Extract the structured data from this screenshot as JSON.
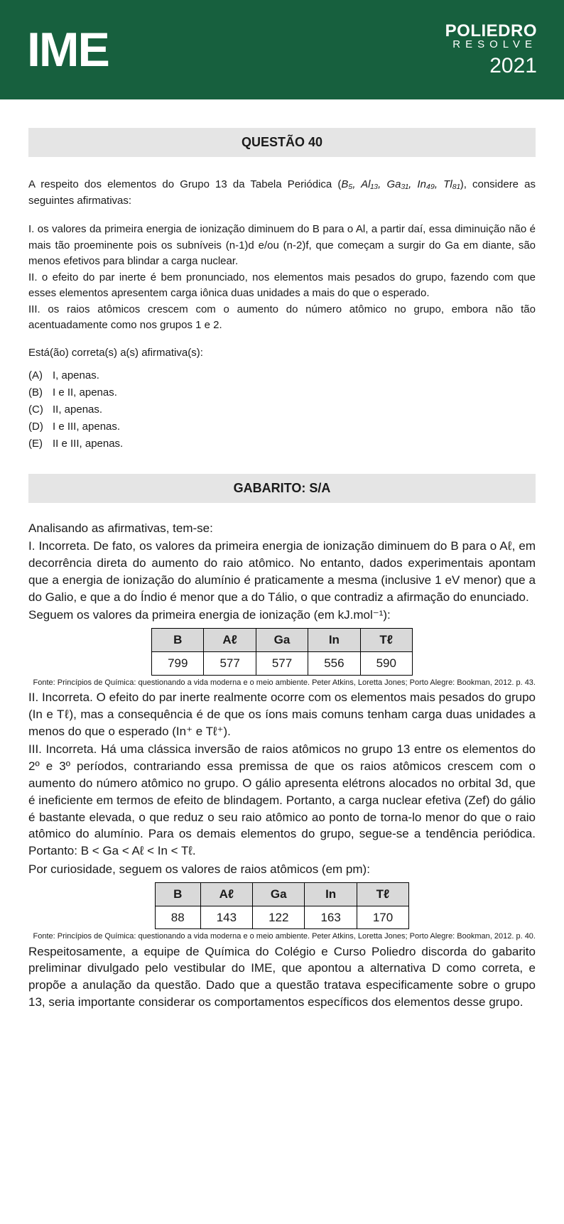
{
  "header": {
    "left": "IME",
    "brand": "POLIEDRO",
    "sub": "RESOLVE",
    "year": "2021",
    "bg_color": "#17603e",
    "text_color": "#ffffff"
  },
  "question": {
    "title": "QUESTÃO 40",
    "intro_a": "A respeito dos elementos do Grupo 13 da Tabela Periódica (",
    "intro_elements": "B₅, Al₁₃, Ga₃₁, In₄₉, Tl₈₁",
    "intro_b": "), considere as seguintes afirmativas:",
    "stmt1": "I. os valores da primeira energia de ionização diminuem do B para o Al, a partir daí, essa diminuição não é mais tão proeminente pois os subníveis (n-1)d e/ou (n-2)f, que começam a surgir do Ga em diante, são menos efetivos para blindar a carga nuclear.",
    "stmt2": "II. o efeito do par inerte é bem pronunciado, nos elementos mais pesados do grupo, fazendo com que esses elementos apresentem carga iônica duas unidades a mais do que o esperado.",
    "stmt3": "III. os raios atômicos crescem com o aumento do número atômico no grupo, embora não tão acentuadamente como nos grupos 1 e 2.",
    "prompt": "Está(ão) correta(s) a(s) afirmativa(s):",
    "options": [
      {
        "letter": "(A)",
        "text": "I, apenas."
      },
      {
        "letter": "(B)",
        "text": "I e II, apenas."
      },
      {
        "letter": "(C)",
        "text": "II, apenas."
      },
      {
        "letter": "(D)",
        "text": "I e III, apenas."
      },
      {
        "letter": "(E)",
        "text": "II e III, apenas."
      }
    ]
  },
  "gabarito": {
    "title": "GABARITO: S/A"
  },
  "analysis": {
    "lead": "Analisando as afirmativas, tem-se:",
    "p1": "I. Incorreta. De fato, os valores da primeira energia de ionização diminuem do B para o Aℓ, em decorrência direta do aumento do raio atômico. No entanto, dados experimentais apontam que a energia de ionização do alumínio é praticamente a mesma (inclusive 1 eV menor) que a do Galio, e que a do Índio é menor que a do Tálio, o que contradiz a afirmação do enunciado.",
    "p1b": "Seguem os valores da primeira energia de ionização (em kJ.mol⁻¹):",
    "source1": "Fonte: Princípios de Química: questionando a vida moderna e o meio ambiente. Peter Atkins, Loretta Jones; Porto Alegre: Bookman, 2012. p. 43.",
    "p2": "II. Incorreta. O efeito do par inerte realmente ocorre com os elementos mais pesados do grupo (In e Tℓ), mas a consequência é de que os íons mais comuns tenham carga duas unidades a menos do que o esperado (In⁺ e Tℓ⁺).",
    "p3": "III. Incorreta. Há uma clássica inversão de raios atômicos no grupo 13 entre os elementos do 2º e 3º períodos, contrariando essa premissa de que os raios atômicos crescem com o aumento do número atômico no grupo. O gálio apresenta elétrons alocados no orbital 3d, que é ineficiente em termos de efeito de blindagem. Portanto, a carga nuclear efetiva (Zef) do gálio é bastante elevada, o que reduz o seu raio atômico ao ponto de torna-lo menor do que o raio atômico do alumínio. Para os demais elementos do grupo, segue-se a tendência periódica. Portanto: B < Ga < Aℓ < In < Tℓ.",
    "p3b": "Por curiosidade, seguem os valores de raios atômicos (em pm):",
    "source2": "Fonte: Princípios de Química: questionando a vida moderna e o meio ambiente. Peter Atkins, Loretta Jones; Porto Alegre: Bookman, 2012. p. 40.",
    "p4": "Respeitosamente, a equipe de Química do Colégio e Curso Poliedro discorda do gabarito preliminar divulgado pelo vestibular do IME, que apontou a alternativa D como correta, e propõe a anulação da questão. Dado que a questão tratava especificamente sobre o grupo 13, seria importante considerar os comportamentos específicos dos elementos desse grupo."
  },
  "table1": {
    "type": "table",
    "header_bg": "#d9d9d9",
    "border_color": "#000000",
    "columns": [
      "B",
      "Aℓ",
      "Ga",
      "In",
      "Tℓ"
    ],
    "rows": [
      [
        "799",
        "577",
        "577",
        "556",
        "590"
      ]
    ]
  },
  "table2": {
    "type": "table",
    "header_bg": "#d9d9d9",
    "border_color": "#000000",
    "columns": [
      "B",
      "Aℓ",
      "Ga",
      "In",
      "Tℓ"
    ],
    "rows": [
      [
        "88",
        "143",
        "122",
        "163",
        "170"
      ]
    ]
  }
}
